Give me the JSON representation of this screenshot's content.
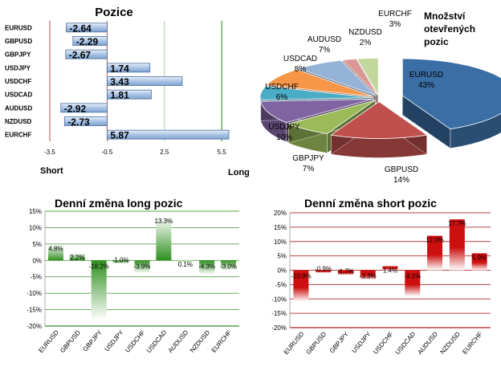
{
  "chart_data": [
    {
      "type": "bar",
      "orientation": "horizontal",
      "title": "Pozice",
      "categories": [
        "EURUSD",
        "GBPUSD",
        "GBPJPY",
        "USDJPY",
        "USDCHF",
        "USDCAD",
        "AUDUSD",
        "NZDUSD",
        "EURCHF"
      ],
      "values": [
        -2.64,
        -2.29,
        -2.67,
        1.74,
        3.43,
        1.81,
        -2.92,
        -2.73,
        5.87
      ],
      "value_labels": [
        "-2.64",
        "-2.29",
        "-2.67",
        "1.74",
        "3.43",
        "1.81",
        "-2.92",
        "-2.73",
        "5.87"
      ],
      "xlim": [
        -3.5,
        6.5
      ],
      "xticks": [
        "-3.5",
        "-0.5",
        "2.5",
        "5.5"
      ],
      "xtick_values": [
        -3.5,
        -0.5,
        2.5,
        5.5
      ],
      "left_label": "Short",
      "right_label": "Long",
      "colors": {
        "bar_fill": "#a9c4e6",
        "bar_stroke": "#4a6f9c",
        "gridline": "#6aaa5a",
        "zero_line": "#c05050"
      }
    },
    {
      "type": "pie",
      "title": "Množství otevřených pozic",
      "title_lines": [
        "Množství",
        "otevřených",
        "pozic"
      ],
      "slices": [
        {
          "name": "EURUSD",
          "value": 43,
          "label": "43%",
          "color": "#3a6ea5"
        },
        {
          "name": "GBPUSD",
          "value": 14,
          "label": "14%",
          "color": "#c0504d"
        },
        {
          "name": "GBPJPY",
          "value": 7,
          "label": "7%",
          "color": "#9bbb59"
        },
        {
          "name": "USDJPY",
          "value": 10,
          "label": "10%",
          "color": "#8064a2"
        },
        {
          "name": "USDCHF",
          "value": 6,
          "label": "6%",
          "color": "#4bacc6"
        },
        {
          "name": "USDCAD",
          "value": 8,
          "label": "8%",
          "color": "#f79646"
        },
        {
          "name": "AUDUSD",
          "value": 7,
          "label": "7%",
          "color": "#95b3d7"
        },
        {
          "name": "NZDUSD",
          "value": 2,
          "label": "2%",
          "color": "#d99694"
        },
        {
          "name": "EURCHF",
          "value": 3,
          "label": "3%",
          "color": "#c3d69b"
        }
      ]
    },
    {
      "type": "bar",
      "title": "Denní změna long pozic",
      "categories": [
        "EURUSD",
        "GBPUSD",
        "GBPJPY",
        "USDJPY",
        "USDCHF",
        "USDCAD",
        "AUDUSD",
        "NZDUSD",
        "EURCHF"
      ],
      "values": [
        4.8,
        2.2,
        -18.2,
        -1.0,
        -3.9,
        13.3,
        0.1,
        -4.3,
        -3.0
      ],
      "value_labels": [
        "4.8%",
        "2.2%",
        "-18.2%",
        "-1.0%",
        "-3.9%",
        "13.3%",
        "0.1%",
        "-4.3%",
        "-3.0%"
      ],
      "ylim": [
        -20,
        15
      ],
      "yticks": [
        "15%",
        "10%",
        "5%",
        "0%",
        "-5%",
        "-10%",
        "-15%",
        "-20%"
      ],
      "ytick_values": [
        15,
        10,
        5,
        0,
        -5,
        -10,
        -15,
        -20
      ],
      "colors": {
        "bar": "#3a9a2a",
        "gridline": "#5aa04a"
      }
    },
    {
      "type": "bar",
      "title": "Denní změna short pozic",
      "categories": [
        "EURUSD",
        "GBPUSD",
        "GBPJPY",
        "USDJPY",
        "USDCHF",
        "USDCAD",
        "AUDUSD",
        "NZDUSD",
        "EURCHF"
      ],
      "values": [
        -10.9,
        -0.9,
        -1.7,
        -3.3,
        1.4,
        -9.1,
        12.0,
        17.7,
        5.9
      ],
      "value_labels": [
        "-10.9%",
        "-0.9%",
        "-1.7%",
        "-3.3%",
        "1.4%",
        "-9.1%",
        "12.0%",
        "17.7%",
        "5.9%"
      ],
      "ylim": [
        -20,
        20
      ],
      "yticks": [
        "20%",
        "15%",
        "10%",
        "5%",
        "0%",
        "-5%",
        "-10%",
        "-15%",
        "-20%"
      ],
      "ytick_values": [
        20,
        15,
        10,
        5,
        0,
        -5,
        -10,
        -15,
        -20
      ],
      "colors": {
        "bar": "#cc1111",
        "gridline": "#c04040"
      }
    }
  ]
}
